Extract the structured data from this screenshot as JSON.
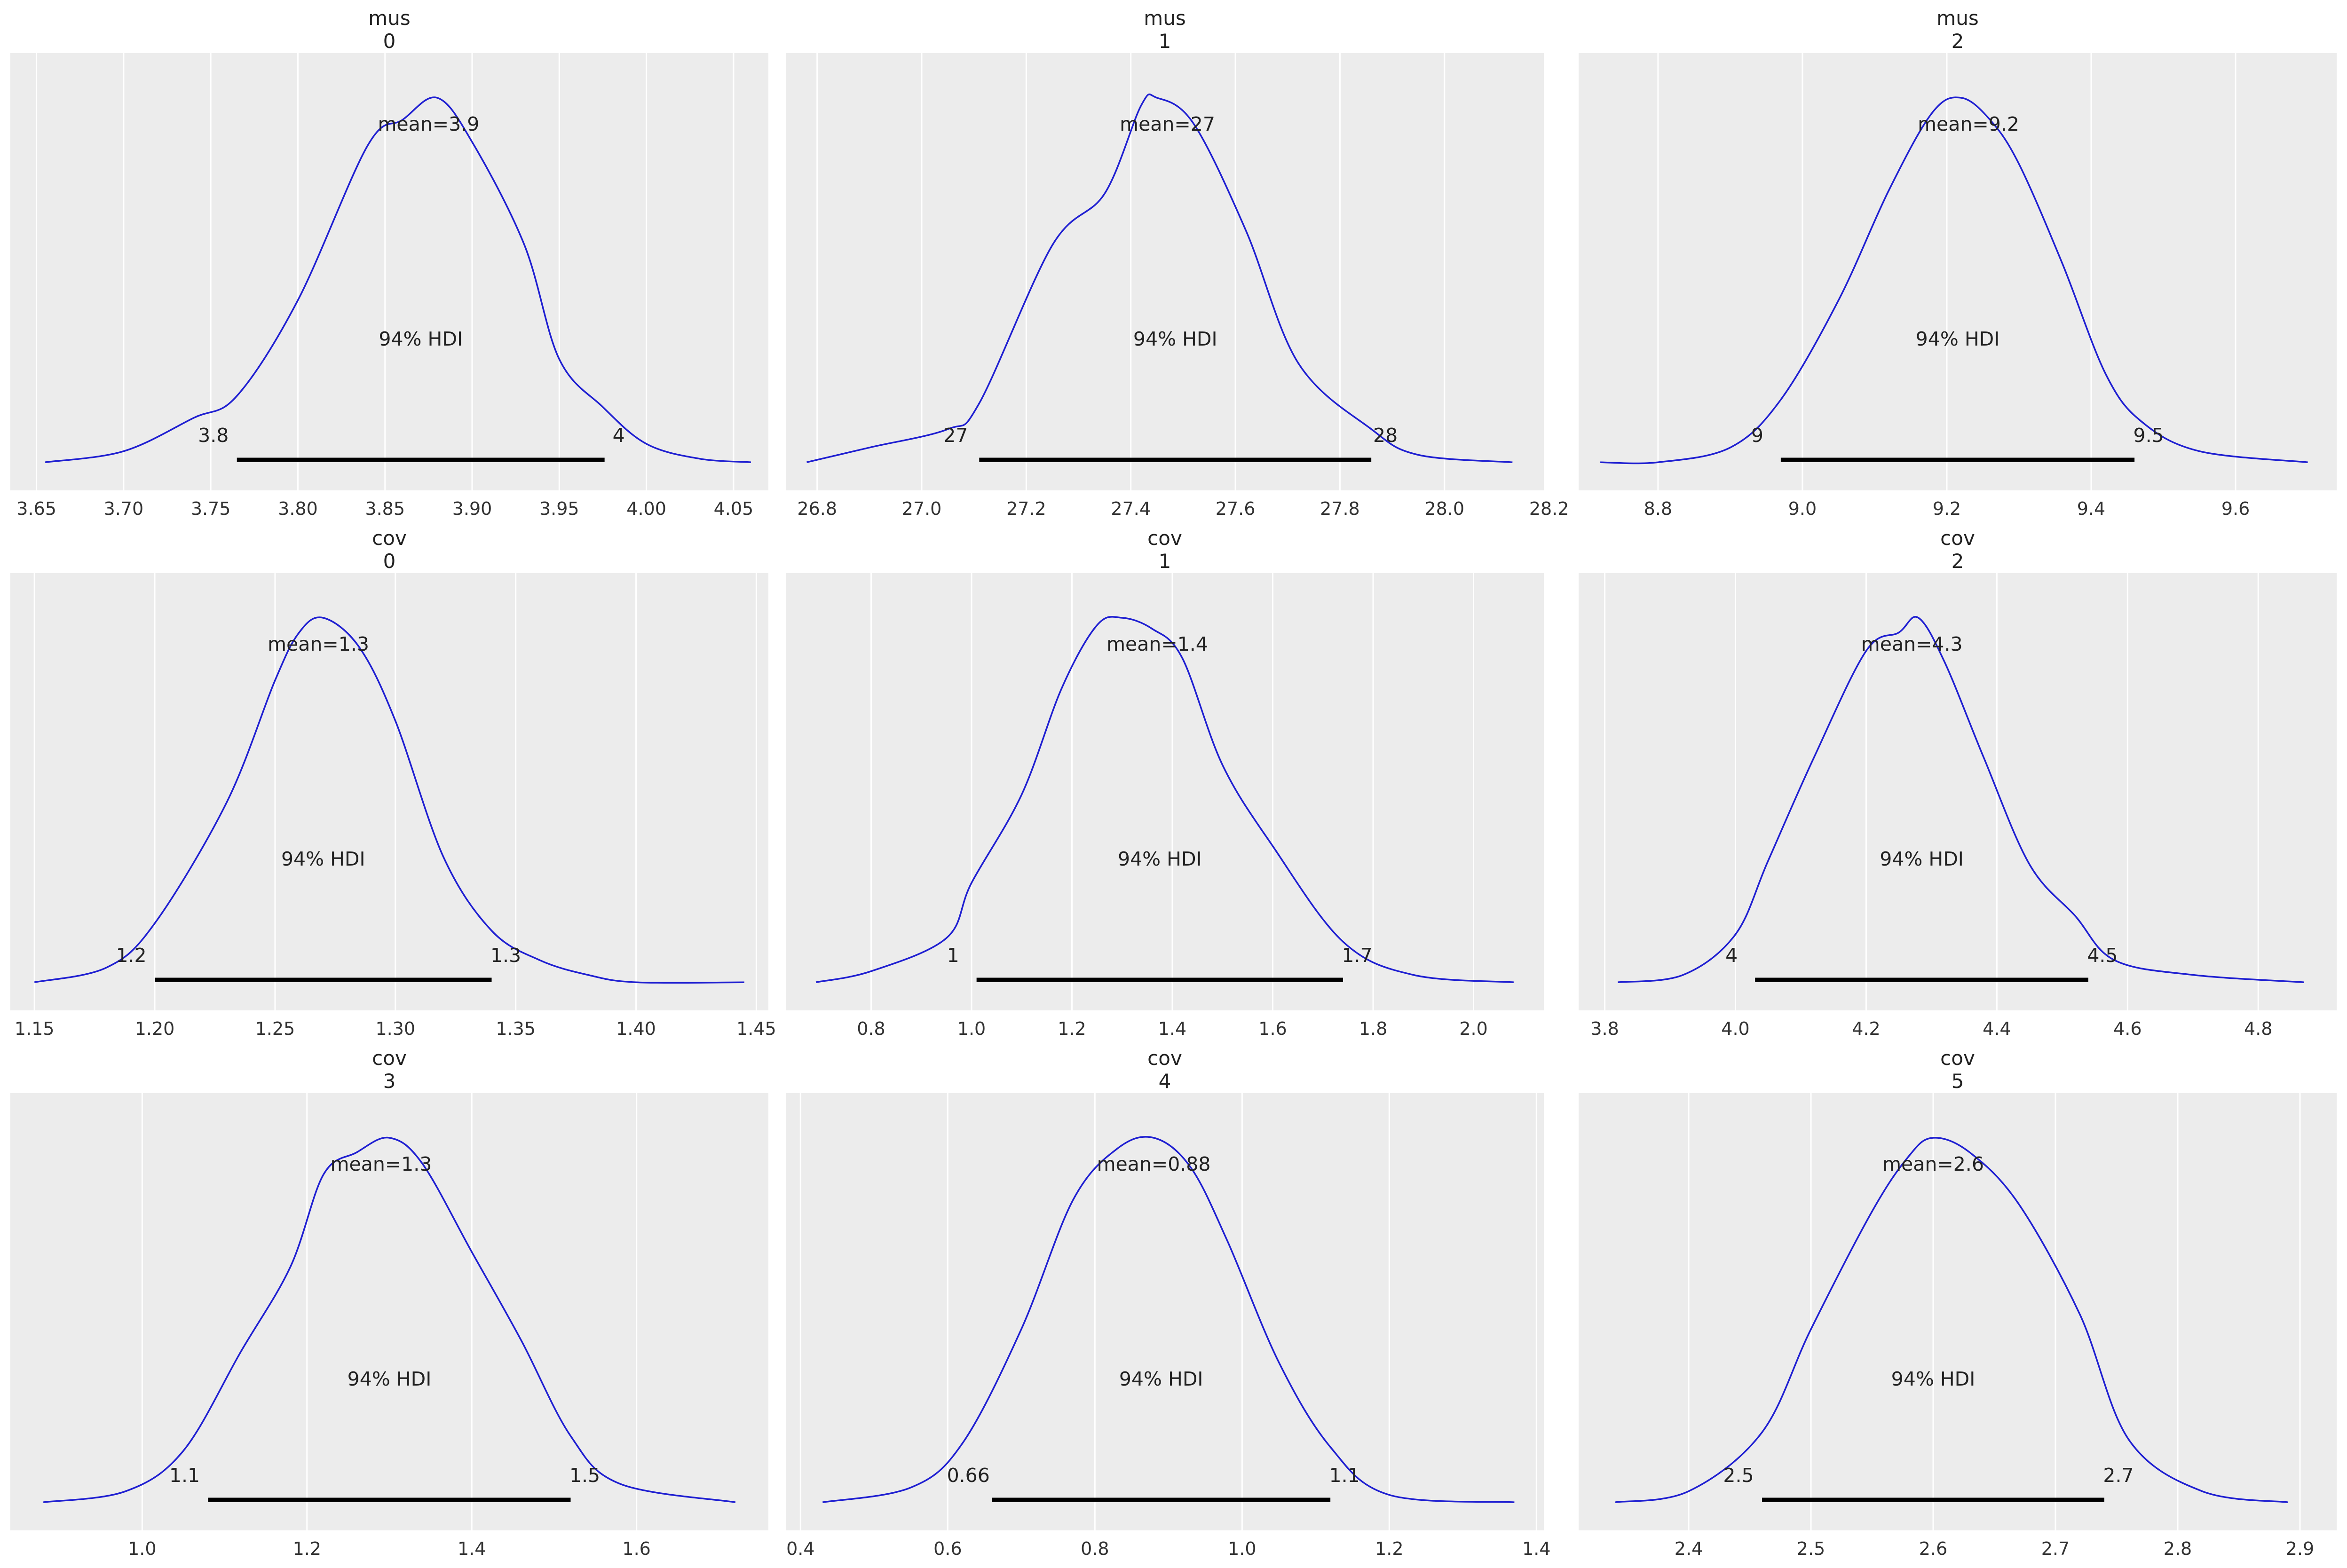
{
  "figure": {
    "background": "#ffffff",
    "panel_color": "#ececec",
    "grid_color": "#ffffff",
    "curve_color": "#1f1fd1",
    "hdi_color": "#000000"
  },
  "chart_data": [
    {
      "type": "line",
      "title": "mus",
      "subtitle": "0",
      "xlim": [
        3.635,
        4.07
      ],
      "xticks": [
        3.65,
        3.7,
        3.75,
        3.8,
        3.85,
        3.9,
        3.95,
        4.0,
        4.05
      ],
      "xtick_labels": [
        "3.65",
        "3.70",
        "3.75",
        "3.80",
        "3.85",
        "3.90",
        "3.95",
        "4.00",
        "4.05"
      ],
      "density": {
        "x": [
          3.655,
          3.7,
          3.74,
          3.765,
          3.8,
          3.84,
          3.86,
          3.88,
          3.9,
          3.93,
          3.95,
          3.975,
          4.0,
          4.03,
          4.06
        ],
        "y": [
          0.01,
          0.04,
          0.13,
          0.19,
          0.45,
          0.87,
          0.94,
          1.0,
          0.88,
          0.6,
          0.29,
          0.16,
          0.06,
          0.02,
          0.01
        ]
      },
      "mean_label": "mean=3.9",
      "mean_x": 3.875,
      "hdi_label": "94% HDI",
      "hdi": [
        3.765,
        3.976
      ],
      "hdi_low_label": "3.8",
      "hdi_high_label": "4"
    },
    {
      "type": "line",
      "title": "mus",
      "subtitle": "1",
      "xlim": [
        26.74,
        28.19
      ],
      "xticks": [
        26.8,
        27.0,
        27.2,
        27.4,
        27.6,
        27.8,
        28.0,
        28.2
      ],
      "xtick_labels": [
        "26.8",
        "27.0",
        "27.2",
        "27.4",
        "27.6",
        "27.8",
        "28.0",
        "28.2"
      ],
      "density": {
        "x": [
          26.78,
          26.9,
          27.05,
          27.11,
          27.25,
          27.35,
          27.42,
          27.45,
          27.52,
          27.62,
          27.72,
          27.86,
          27.95,
          28.13
        ],
        "y": [
          0.01,
          0.05,
          0.1,
          0.17,
          0.6,
          0.74,
          0.98,
          1.0,
          0.93,
          0.64,
          0.28,
          0.1,
          0.03,
          0.01
        ]
      },
      "mean_label": "mean=27",
      "mean_x": 27.47,
      "hdi_label": "94% HDI",
      "hdi": [
        27.11,
        27.86
      ],
      "hdi_low_label": "27",
      "hdi_high_label": "28"
    },
    {
      "type": "line",
      "title": "mus",
      "subtitle": "2",
      "xlim": [
        8.69,
        9.74
      ],
      "xticks": [
        8.8,
        9.0,
        9.2,
        9.4,
        9.6
      ],
      "xtick_labels": [
        "8.8",
        "9.0",
        "9.2",
        "9.4",
        "9.6"
      ],
      "density": {
        "x": [
          8.72,
          8.8,
          8.9,
          8.97,
          9.05,
          9.12,
          9.18,
          9.22,
          9.26,
          9.3,
          9.36,
          9.42,
          9.47,
          9.55,
          9.7
        ],
        "y": [
          0.01,
          0.01,
          0.05,
          0.18,
          0.45,
          0.75,
          0.96,
          1.0,
          0.94,
          0.82,
          0.55,
          0.25,
          0.12,
          0.04,
          0.01
        ]
      },
      "mean_label": "mean=9.2",
      "mean_x": 9.23,
      "hdi_label": "94% HDI",
      "hdi": [
        8.97,
        9.46
      ],
      "hdi_low_label": "9",
      "hdi_high_label": "9.5"
    },
    {
      "type": "line",
      "title": "cov",
      "subtitle": "0",
      "xlim": [
        1.14,
        1.455
      ],
      "xticks": [
        1.15,
        1.2,
        1.25,
        1.3,
        1.35,
        1.4,
        1.45
      ],
      "xtick_labels": [
        "1.15",
        "1.20",
        "1.25",
        "1.30",
        "1.35",
        "1.40",
        "1.45"
      ],
      "density": {
        "x": [
          1.15,
          1.18,
          1.2,
          1.23,
          1.25,
          1.26,
          1.27,
          1.285,
          1.3,
          1.32,
          1.34,
          1.36,
          1.38,
          1.4,
          1.445
        ],
        "y": [
          0.01,
          0.05,
          0.17,
          0.5,
          0.83,
          0.96,
          1.0,
          0.92,
          0.72,
          0.35,
          0.15,
          0.07,
          0.03,
          0.01,
          0.01
        ]
      },
      "mean_label": "mean=1.3",
      "mean_x": 1.268,
      "hdi_label": "94% HDI",
      "hdi": [
        1.2,
        1.34
      ],
      "hdi_low_label": "1.2",
      "hdi_high_label": "1.3"
    },
    {
      "type": "line",
      "title": "cov",
      "subtitle": "1",
      "xlim": [
        0.63,
        2.14
      ],
      "xticks": [
        0.8,
        1.0,
        1.2,
        1.4,
        1.6,
        1.8,
        2.0
      ],
      "xtick_labels": [
        "0.8",
        "1.0",
        "1.2",
        "1.4",
        "1.6",
        "1.8",
        "2.0"
      ],
      "density": {
        "x": [
          0.69,
          0.8,
          0.95,
          1.0,
          1.1,
          1.18,
          1.25,
          1.3,
          1.36,
          1.42,
          1.5,
          1.6,
          1.74,
          1.88,
          2.08
        ],
        "y": [
          0.01,
          0.04,
          0.13,
          0.28,
          0.52,
          0.81,
          0.98,
          1.0,
          0.97,
          0.89,
          0.6,
          0.38,
          0.12,
          0.03,
          0.01
        ]
      },
      "mean_label": "mean=1.4",
      "mean_x": 1.37,
      "hdi_label": "94% HDI",
      "hdi": [
        1.01,
        1.74
      ],
      "hdi_low_label": "1",
      "hdi_high_label": "1.7"
    },
    {
      "type": "line",
      "title": "cov",
      "subtitle": "2",
      "xlim": [
        3.76,
        4.92
      ],
      "xticks": [
        3.8,
        4.0,
        4.2,
        4.4,
        4.6,
        4.8
      ],
      "xtick_labels": [
        "3.8",
        "4.0",
        "4.2",
        "4.4",
        "4.6",
        "4.8"
      ],
      "density": {
        "x": [
          3.82,
          3.92,
          4.0,
          4.05,
          4.12,
          4.2,
          4.25,
          4.28,
          4.32,
          4.38,
          4.45,
          4.52,
          4.58,
          4.7,
          4.87
        ],
        "y": [
          0.01,
          0.03,
          0.14,
          0.34,
          0.62,
          0.91,
          0.96,
          1.0,
          0.88,
          0.62,
          0.33,
          0.19,
          0.07,
          0.03,
          0.01
        ]
      },
      "mean_label": "mean=4.3",
      "mean_x": 4.27,
      "hdi_label": "94% HDI",
      "hdi": [
        4.03,
        4.54
      ],
      "hdi_low_label": "4",
      "hdi_high_label": "4.5"
    },
    {
      "type": "line",
      "title": "cov",
      "subtitle": "3",
      "xlim": [
        0.84,
        1.76
      ],
      "xticks": [
        1.0,
        1.2,
        1.4,
        1.6
      ],
      "xtick_labels": [
        "1.0",
        "1.2",
        "1.4",
        "1.6"
      ],
      "density": {
        "x": [
          0.88,
          0.98,
          1.05,
          1.12,
          1.18,
          1.22,
          1.26,
          1.3,
          1.34,
          1.4,
          1.46,
          1.52,
          1.58,
          1.72
        ],
        "y": [
          0.01,
          0.04,
          0.15,
          0.42,
          0.65,
          0.9,
          0.96,
          1.0,
          0.93,
          0.69,
          0.45,
          0.19,
          0.06,
          0.01
        ]
      },
      "mean_label": "mean=1.3",
      "mean_x": 1.29,
      "hdi_label": "94% HDI",
      "hdi": [
        1.08,
        1.52
      ],
      "hdi_low_label": "1.1",
      "hdi_high_label": "1.5"
    },
    {
      "type": "line",
      "title": "cov",
      "subtitle": "4",
      "xlim": [
        0.38,
        1.41
      ],
      "xticks": [
        0.4,
        0.6,
        0.8,
        1.0,
        1.2,
        1.4
      ],
      "xtick_labels": [
        "0.4",
        "0.6",
        "0.8",
        "1.0",
        "1.2",
        "1.4"
      ],
      "density": {
        "x": [
          0.43,
          0.55,
          0.62,
          0.7,
          0.77,
          0.83,
          0.88,
          0.93,
          0.98,
          1.05,
          1.12,
          1.2,
          1.37
        ],
        "y": [
          0.01,
          0.05,
          0.17,
          0.48,
          0.83,
          0.97,
          1.0,
          0.92,
          0.72,
          0.39,
          0.16,
          0.03,
          0.01
        ]
      },
      "mean_label": "mean=0.88",
      "mean_x": 0.88,
      "hdi_label": "94% HDI",
      "hdi": [
        0.66,
        1.12
      ],
      "hdi_low_label": "0.66",
      "hdi_high_label": "1.1"
    },
    {
      "type": "line",
      "title": "cov",
      "subtitle": "5",
      "xlim": [
        2.31,
        2.93
      ],
      "xticks": [
        2.4,
        2.5,
        2.6,
        2.7,
        2.8,
        2.9
      ],
      "xtick_labels": [
        "2.4",
        "2.5",
        "2.6",
        "2.7",
        "2.8",
        "2.9"
      ],
      "density": {
        "x": [
          2.34,
          2.4,
          2.46,
          2.5,
          2.55,
          2.58,
          2.6,
          2.63,
          2.67,
          2.72,
          2.76,
          2.82,
          2.89
        ],
        "y": [
          0.01,
          0.04,
          0.2,
          0.48,
          0.8,
          0.95,
          1.0,
          0.96,
          0.82,
          0.52,
          0.18,
          0.04,
          0.01
        ]
      },
      "mean_label": "mean=2.6",
      "mean_x": 2.6,
      "hdi_label": "94% HDI",
      "hdi": [
        2.46,
        2.74
      ],
      "hdi_low_label": "2.5",
      "hdi_high_label": "2.7"
    }
  ]
}
